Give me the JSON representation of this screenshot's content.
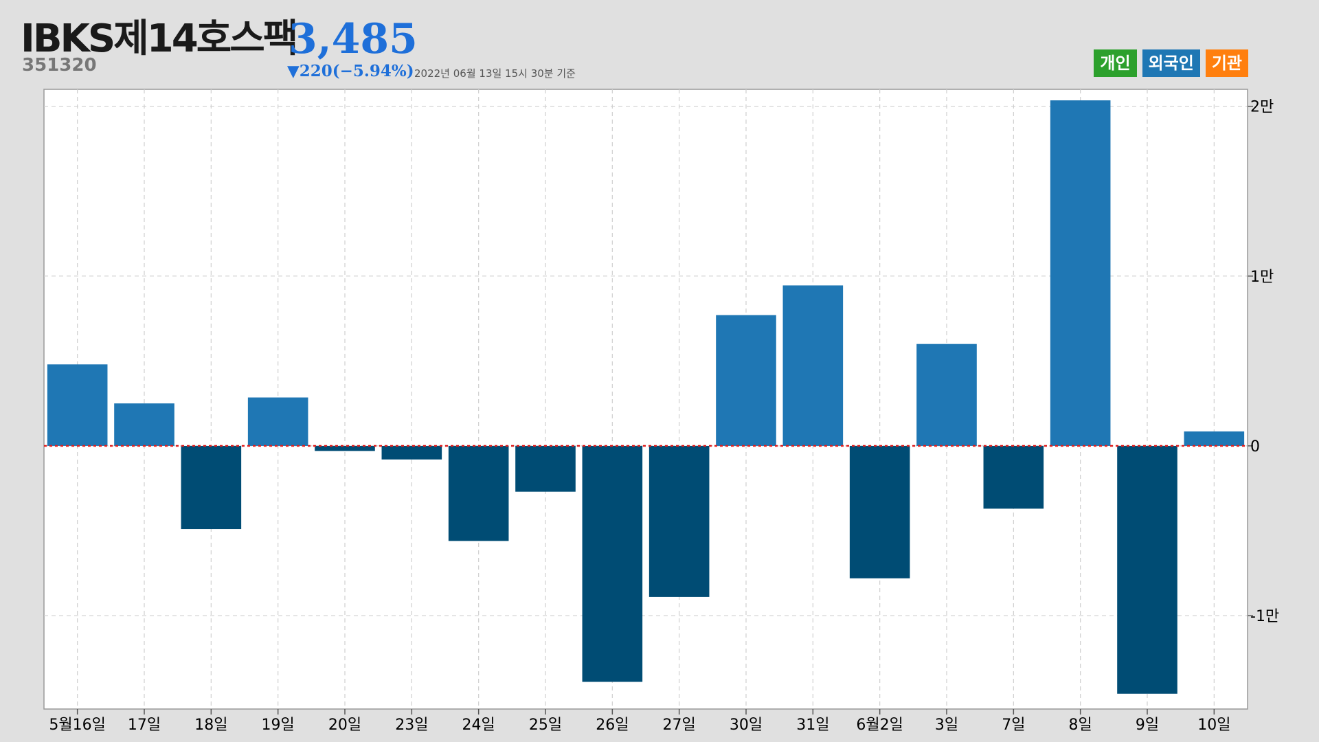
{
  "header": {
    "name": "IBKS제14호스팩",
    "code": "351320",
    "price": "3,485",
    "change": "▼220(−5.94%)",
    "as_of": "2022년 06월 13일 15시 30분 기준"
  },
  "legend": [
    {
      "label": "개인",
      "color": "#2ca02c"
    },
    {
      "label": "외국인",
      "color": "#1f77b4"
    },
    {
      "label": "기관",
      "color": "#ff7f0e"
    }
  ],
  "chart_data": {
    "type": "bar",
    "categories": [
      "5월16일",
      "17일",
      "18일",
      "19일",
      "20일",
      "23일",
      "24일",
      "25일",
      "26일",
      "27일",
      "30일",
      "31일",
      "6월2일",
      "3일",
      "7일",
      "8일",
      "9일",
      "10일"
    ],
    "values": [
      4800,
      2500,
      -4900,
      2850,
      -300,
      -800,
      -5600,
      -2700,
      -13900,
      -8900,
      7700,
      9450,
      -7800,
      6000,
      -3700,
      20350,
      -14600,
      850
    ],
    "ylim": [
      -15500,
      21000
    ],
    "yticks": [
      -10000,
      0,
      10000,
      20000
    ],
    "yticklabels": [
      "-1만",
      "0",
      "1만",
      "2만"
    ],
    "positive_color": "#1f77b4",
    "negative_color": "#004c74",
    "zero_line_color": "#e02020",
    "grid": true
  }
}
